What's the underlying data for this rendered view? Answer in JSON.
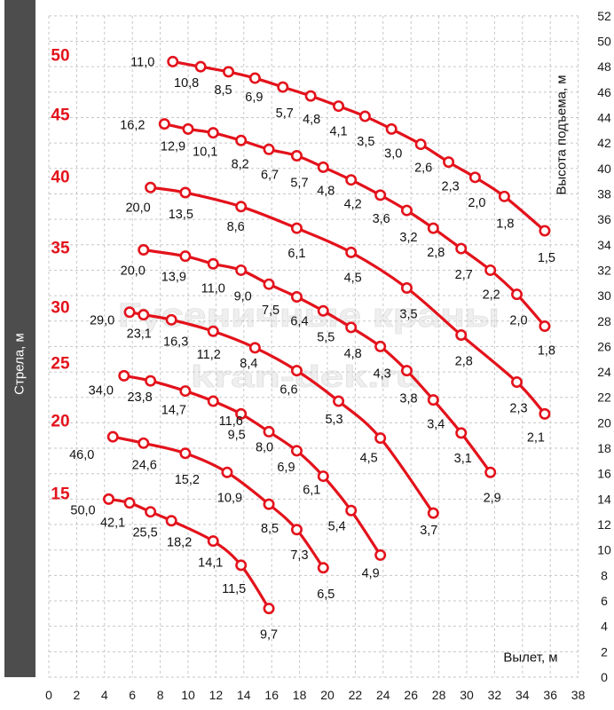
{
  "watermark": {
    "line1": "Гусеничные краны",
    "line2": "kran-dek.ru"
  },
  "colors": {
    "curve": "#e3121b",
    "boom_length_label": "#e3121b",
    "boom_axis_bar": "#4d4d4d"
  },
  "chart_data": {
    "type": "line",
    "xlabel": "Вылет, м",
    "ylabel": "Высота подъема, м",
    "boom_label": "Стрела, м",
    "xlim": [
      0,
      38
    ],
    "ylim": [
      0,
      52
    ],
    "x_ticks": [
      0,
      2,
      4,
      6,
      8,
      10,
      12,
      14,
      16,
      18,
      20,
      22,
      24,
      26,
      28,
      30,
      32,
      34,
      36,
      38
    ],
    "y_ticks": [
      0,
      2,
      4,
      6,
      8,
      10,
      12,
      14,
      16,
      18,
      20,
      22,
      24,
      26,
      28,
      30,
      32,
      34,
      36,
      38,
      40,
      42,
      44,
      46,
      48,
      50,
      52
    ],
    "grid": true,
    "series": [
      {
        "name": "50",
        "x": [
          8.9,
          10.9,
          12.9,
          14.8,
          16.8,
          18.8,
          20.8,
          22.7,
          24.6,
          26.7,
          28.7,
          30.6,
          32.7,
          35.6
        ],
        "y": [
          48.4,
          48.0,
          47.6,
          47.1,
          46.4,
          45.7,
          44.9,
          44.1,
          43.1,
          41.9,
          40.5,
          39.3,
          37.8,
          35.1
        ],
        "loads": [
          "11,0",
          "10,8",
          "8,5",
          "6,9",
          "5,7",
          "4,8",
          "4,1",
          "3,5",
          "3,0",
          "2,6",
          "2,3",
          "2,0",
          "1,8",
          "1,5"
        ]
      },
      {
        "name": "45",
        "x": [
          8.3,
          10.0,
          11.8,
          13.8,
          15.8,
          17.8,
          19.7,
          21.7,
          23.8,
          25.7,
          27.6,
          29.6,
          31.7,
          33.6,
          35.6
        ],
        "y": [
          43.5,
          43.1,
          42.8,
          42.2,
          41.5,
          41.0,
          40.1,
          39.1,
          37.9,
          36.7,
          35.3,
          33.7,
          32.0,
          30.1,
          27.6
        ],
        "loads": [
          "16,2",
          "12,9",
          "10,1",
          "8,2",
          "6,7",
          "5,7",
          "4,8",
          "4,2",
          "3,6",
          "3,2",
          "2,8",
          "2,7",
          "2,2",
          "2,0",
          "1,8"
        ]
      },
      {
        "name": "40",
        "x": [
          7.3,
          9.8,
          13.8,
          17.8,
          21.7,
          25.7,
          29.6,
          33.6,
          35.6
        ],
        "y": [
          38.5,
          38.1,
          37.0,
          35.3,
          33.4,
          30.6,
          26.9,
          23.2,
          20.7
        ],
        "loads": [
          "20,0",
          "13,5",
          "8,6",
          "6,1",
          "4,5",
          "3,5",
          "2,8",
          "2,3",
          "2,1"
        ]
      },
      {
        "name": "35",
        "x": [
          6.8,
          9.8,
          11.8,
          13.8,
          15.8,
          17.8,
          19.7,
          21.7,
          23.8,
          25.7,
          27.6,
          29.6,
          31.7
        ],
        "y": [
          33.6,
          33.1,
          32.5,
          32.0,
          30.9,
          29.9,
          28.8,
          27.5,
          26.0,
          24.1,
          21.8,
          19.2,
          16.1
        ],
        "loads": [
          "20,0",
          "13,9",
          "11,0",
          "9,0",
          "7,5",
          "6,4",
          "5,5",
          "4,8",
          "4,3",
          "3,8",
          "3,4",
          "3,1",
          "2,9"
        ]
      },
      {
        "name": "30",
        "x": [
          5.8,
          6.8,
          8.8,
          11.8,
          14.8,
          17.8,
          20.8,
          23.8,
          27.6
        ],
        "y": [
          28.7,
          28.5,
          28.1,
          27.2,
          25.9,
          24.1,
          21.7,
          18.8,
          12.9
        ],
        "loads": [
          "29,0",
          "23,1",
          "16,3",
          "11,2",
          "8,4",
          "6,6",
          "5,3",
          "4,5",
          "3,7"
        ]
      },
      {
        "name": "25",
        "x": [
          5.4,
          7.3,
          9.8,
          11.8,
          13.8,
          15.8,
          17.8,
          19.7,
          21.7,
          23.8
        ],
        "y": [
          23.7,
          23.3,
          22.5,
          21.7,
          20.7,
          19.3,
          17.8,
          15.8,
          13.1,
          9.6
        ],
        "loads": [
          "34,0",
          "23,8",
          "14,7",
          "11,6",
          "9,5",
          "8,0",
          "6,9",
          "6,1",
          "5,4",
          "4,9"
        ]
      },
      {
        "name": "20",
        "x": [
          4.6,
          6.8,
          9.8,
          12.8,
          15.8,
          17.8,
          19.7
        ],
        "y": [
          18.9,
          18.4,
          17.6,
          16.1,
          13.6,
          11.6,
          8.6
        ],
        "loads": [
          "46,0",
          "24,6",
          "15,2",
          "10,9",
          "8,5",
          "7,3",
          "6,5"
        ]
      },
      {
        "name": "15",
        "x": [
          4.3,
          5.8,
          7.3,
          8.8,
          11.8,
          13.8,
          15.8
        ],
        "y": [
          14.0,
          13.7,
          13.0,
          12.3,
          10.7,
          8.8,
          5.4
        ],
        "loads": [
          "50,0",
          "42,1",
          "25,5",
          "18,2",
          "14,1",
          "11,5",
          "9,7"
        ]
      }
    ]
  }
}
